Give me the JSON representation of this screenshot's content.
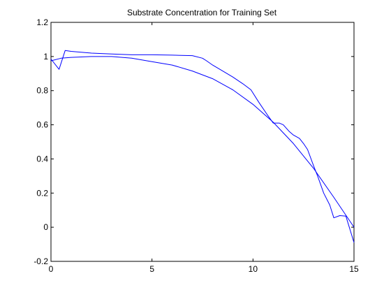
{
  "chart_data": {
    "type": "line",
    "title": "Substrate Concentration for Training Set",
    "xlabel": "",
    "ylabel": "",
    "xlim": [
      0,
      15
    ],
    "ylim": [
      -0.2,
      1.2
    ],
    "xticks": [
      0,
      5,
      10,
      15
    ],
    "xtick_labels": [
      "0",
      "5",
      "10",
      "15"
    ],
    "yticks": [
      -0.2,
      0,
      0.2,
      0.4,
      0.6,
      0.8,
      1,
      1.2
    ],
    "ytick_labels": [
      "-0.2",
      "0",
      "0.2",
      "0.4",
      "0.6",
      "0.8",
      "1",
      "1.2"
    ],
    "grid": false,
    "line_color": "#0000ff",
    "series": [
      {
        "x": [
          0,
          0.4,
          0.7,
          1,
          2,
          3,
          4,
          5,
          6,
          7,
          7.5,
          7.7,
          8,
          8.5,
          9,
          9.5,
          9.9,
          10.3,
          10.7,
          11,
          11.3,
          11.5,
          11.8,
          12,
          12.3,
          12.5,
          12.7,
          13,
          13.2,
          13.5,
          13.8,
          14,
          14.3,
          14.6,
          15
        ],
        "values": [
          0.985,
          0.925,
          1.035,
          1.03,
          1.02,
          1.015,
          1.01,
          1.01,
          1.008,
          1.005,
          0.99,
          0.975,
          0.95,
          0.915,
          0.88,
          0.84,
          0.805,
          0.73,
          0.66,
          0.61,
          0.61,
          0.6,
          0.56,
          0.54,
          0.52,
          0.49,
          0.455,
          0.36,
          0.3,
          0.2,
          0.13,
          0.055,
          0.068,
          0.065,
          -0.09
        ]
      },
      {
        "x": [
          0,
          0.5,
          1,
          2,
          3,
          4,
          5,
          6,
          7,
          8,
          9,
          10,
          11,
          12,
          13,
          14,
          14.6,
          15
        ],
        "values": [
          0.975,
          0.99,
          0.995,
          1.0,
          1.0,
          0.99,
          0.97,
          0.95,
          0.915,
          0.87,
          0.805,
          0.72,
          0.615,
          0.49,
          0.345,
          0.175,
          0.07,
          0.0
        ]
      }
    ]
  }
}
